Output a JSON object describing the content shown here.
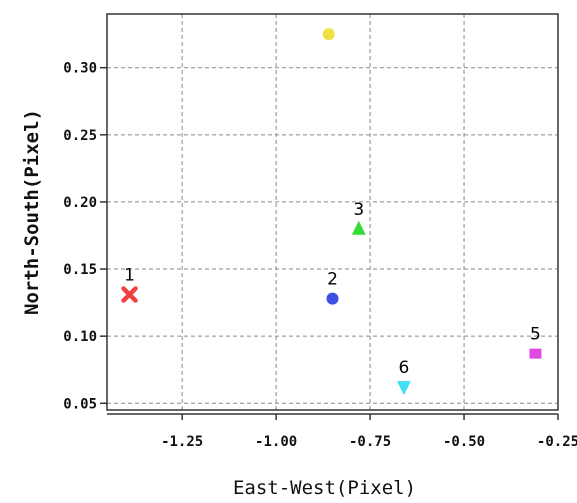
{
  "chart_data": {
    "type": "scatter",
    "title": "",
    "xlabel": "East-West(Pixel)",
    "ylabel": "North-South(Pixel)",
    "xlim": [
      -1.45,
      -0.25
    ],
    "ylim": [
      0.045,
      0.34
    ],
    "grid": true,
    "x_ticks": [
      -1.25,
      -1.0,
      -0.75,
      -0.5,
      -0.25
    ],
    "x_tick_labels": [
      "-1.25",
      "-1.00",
      "-0.75",
      "-0.50",
      "-0.25"
    ],
    "y_ticks": [
      0.05,
      0.1,
      0.15,
      0.2,
      0.25,
      0.3
    ],
    "y_tick_labels": [
      "0.05",
      "0.10",
      "0.15",
      "0.20",
      "0.25",
      "0.30"
    ],
    "points": [
      {
        "label": "1",
        "x": -1.39,
        "y": 0.131,
        "marker": "x-cross",
        "color": "#f04040"
      },
      {
        "label": "2",
        "x": -0.85,
        "y": 0.128,
        "marker": "circle",
        "color": "#3b4fe0"
      },
      {
        "label": "3",
        "x": -0.78,
        "y": 0.18,
        "marker": "triangle-up",
        "color": "#33dd33"
      },
      {
        "label": "",
        "x": -0.86,
        "y": 0.325,
        "marker": "circle",
        "color": "#f0e040"
      },
      {
        "label": "5",
        "x": -0.31,
        "y": 0.087,
        "marker": "square",
        "color": "#e04ae0"
      },
      {
        "label": "6",
        "x": -0.66,
        "y": 0.062,
        "marker": "triangle-down",
        "color": "#40e0f0"
      }
    ]
  }
}
